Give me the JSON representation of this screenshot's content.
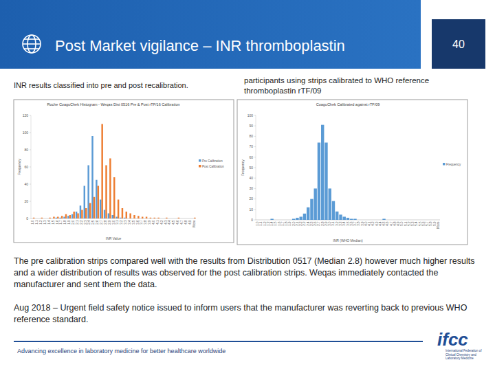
{
  "header": {
    "title": "Post Market vigilance – INR thromboplastin",
    "page_number": 40
  },
  "captions": [
    "INR results classified into pre and post recalibration.",
    "participants using strips calibrated to WHO reference thromboplastin rTF/09"
  ],
  "body": [
    "The pre calibration strips compared well with the results from Distribution 0517 (Median 2.8) however much higher results and a wider distribution of results was observed for the post calibration strips. Weqas immediately contacted the manufacturer and sent them the data.",
    "Aug 2018 – Urgent field safety notice issued to inform users that the manufacturer was reverting back to previous WHO reference standard."
  ],
  "footer": {
    "text": "Advancing excellence in laboratory medicine for better healthcare worldwide",
    "logo": "ifcc",
    "logo_subtitle": "International Federation of Clinical Chemistry and Laboratory Medicine"
  },
  "chart_data": [
    {
      "type": "bar",
      "title": "Roche CoaguChek Histogram - Weqas Dist 0516 Pre & Post rTF/16 Calibration",
      "x_label": "INR Value",
      "y_label": "Frequency",
      "categories": [
        "1.0",
        "1.1",
        "1.2",
        "1.3",
        "1.4",
        "1.5",
        "1.6",
        "1.7",
        "1.8",
        "1.9",
        "2.0",
        "2.1",
        "2.2",
        "2.3",
        "2.4",
        "2.5",
        "2.6",
        "2.7",
        "2.8",
        "2.9",
        "3.0",
        "3.1",
        "3.2",
        "3.3",
        "3.4",
        "3.5",
        "3.6",
        "3.7",
        "3.8",
        "3.9",
        "4.0",
        "4.1",
        "4.2",
        "4.3",
        "4.4",
        "4.5",
        "4.6",
        "4.7",
        "4.8",
        "4.9",
        "More"
      ],
      "series": [
        {
          "name": "Pre Calibration",
          "color": "#5b9bd5",
          "values": [
            0,
            0,
            0,
            0,
            0,
            0,
            1,
            1,
            2,
            3,
            5,
            8,
            15,
            38,
            62,
            96,
            45,
            22,
            10,
            6,
            4,
            2,
            1,
            1,
            0,
            0,
            0,
            0,
            0,
            0,
            0,
            0,
            0,
            0,
            0,
            0,
            0,
            0,
            0,
            0,
            0
          ]
        },
        {
          "name": "Post Calibration",
          "color": "#ed7d31",
          "values": [
            1,
            0,
            1,
            0,
            1,
            2,
            2,
            3,
            5,
            4,
            8,
            6,
            10,
            12,
            18,
            25,
            38,
            110,
            62,
            70,
            48,
            22,
            12,
            8,
            6,
            4,
            3,
            2,
            2,
            1,
            1,
            1,
            0,
            1,
            0,
            0,
            1,
            0,
            0,
            0,
            1
          ]
        }
      ],
      "ylim": [
        0,
        120
      ],
      "yticks": [
        0,
        20,
        40,
        60,
        80,
        100,
        120
      ],
      "grid": false,
      "legend": "right"
    },
    {
      "type": "bar",
      "title": "CoaguChek Calibrated against rTF/09",
      "x_label": "INR (WHO Median)",
      "y_label": "Frequency",
      "categories": [
        "1.0",
        "1.1",
        "1.2",
        "1.3",
        "1.4",
        "1.5",
        "1.6",
        "1.7",
        "1.8",
        "1.9",
        "2.0",
        "2.1",
        "2.2",
        "2.3",
        "2.4",
        "2.5",
        "2.6",
        "2.7",
        "2.8",
        "2.9",
        "3.0",
        "3.1",
        "3.2",
        "3.3",
        "3.4",
        "3.5",
        "3.6",
        "3.7",
        "3.8",
        "3.9",
        "4.0",
        "4.1",
        "4.2",
        "4.3",
        "4.4",
        "4.5",
        "4.6",
        "4.7",
        "4.8",
        "4.9",
        "5.0",
        "5.1",
        "5.2",
        "5.3",
        "5.4",
        "5.5",
        "5.6",
        "5.7",
        "5.8",
        "5.9",
        "More"
      ],
      "series": [
        {
          "name": "Frequency",
          "color": "#5b9bd5",
          "values": [
            0,
            0,
            0,
            0,
            1,
            0,
            0,
            0,
            0,
            0,
            1,
            2,
            3,
            6,
            12,
            20,
            30,
            74,
            91,
            74,
            30,
            18,
            8,
            5,
            3,
            2,
            1,
            1,
            0,
            0,
            0,
            0,
            0,
            0,
            0,
            1,
            0,
            0,
            0,
            0,
            0,
            0,
            0,
            0,
            0,
            0,
            0,
            0,
            0,
            0,
            0
          ]
        }
      ],
      "ylim": [
        0,
        100
      ],
      "yticks": [
        0,
        10,
        20,
        30,
        40,
        50,
        60,
        70,
        80,
        90,
        100
      ],
      "grid": false,
      "legend": "right"
    }
  ]
}
